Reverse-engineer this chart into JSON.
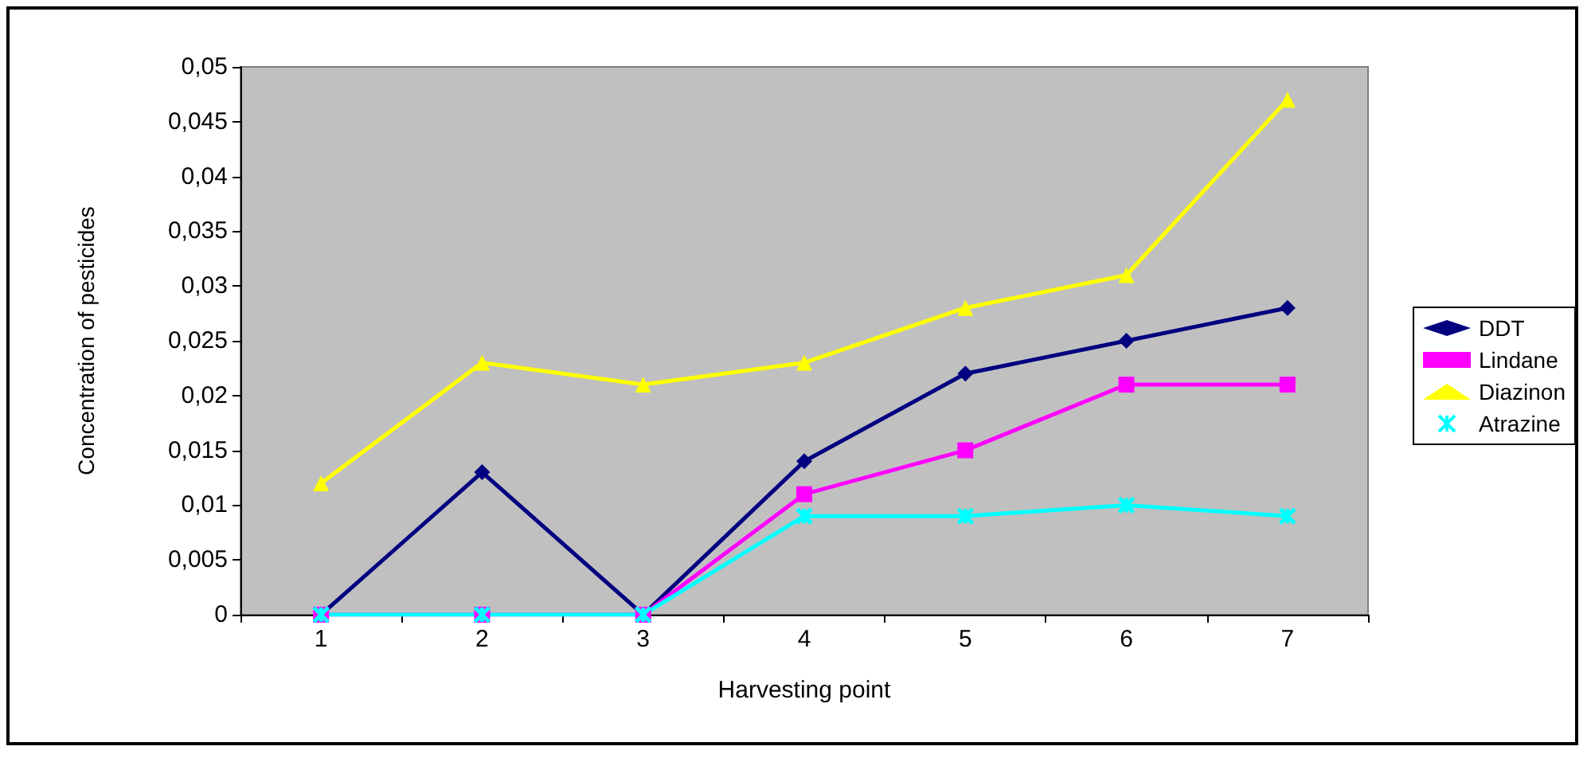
{
  "chart_data": {
    "type": "line",
    "xlabel": "Harvesting point",
    "ylabel": "Concentration of pesticides",
    "categories": [
      "1",
      "2",
      "3",
      "4",
      "5",
      "6",
      "7"
    ],
    "series": [
      {
        "name": "DDT",
        "color": "#000080",
        "marker": "diamond",
        "values": [
          0,
          0.013,
          0,
          0.014,
          0.022,
          0.025,
          0.028
        ]
      },
      {
        "name": "Lindane",
        "color": "#ff00ff",
        "marker": "square",
        "values": [
          0,
          0,
          0,
          0.011,
          0.015,
          0.021,
          0.021
        ]
      },
      {
        "name": "Diazinon",
        "color": "#ffff00",
        "marker": "triangle",
        "values": [
          0.012,
          0.023,
          0.021,
          0.023,
          0.028,
          0.031,
          0.047
        ]
      },
      {
        "name": "Atrazine",
        "color": "#00ffff",
        "marker": "cross",
        "values": [
          0,
          0,
          0,
          0.009,
          0.009,
          0.01,
          0.009
        ]
      }
    ],
    "ylim": [
      0,
      0.05
    ],
    "yticks": [
      {
        "value": 0,
        "label": "0"
      },
      {
        "value": 0.005,
        "label": "0,005"
      },
      {
        "value": 0.01,
        "label": "0,01"
      },
      {
        "value": 0.015,
        "label": "0,015"
      },
      {
        "value": 0.02,
        "label": "0,02"
      },
      {
        "value": 0.025,
        "label": "0,025"
      },
      {
        "value": 0.03,
        "label": "0,03"
      },
      {
        "value": 0.035,
        "label": "0,035"
      },
      {
        "value": 0.04,
        "label": "0,04"
      },
      {
        "value": 0.045,
        "label": "0,045"
      },
      {
        "value": 0.05,
        "label": "0,05"
      }
    ],
    "grid": false,
    "legend": "right",
    "line_style": "solid"
  }
}
